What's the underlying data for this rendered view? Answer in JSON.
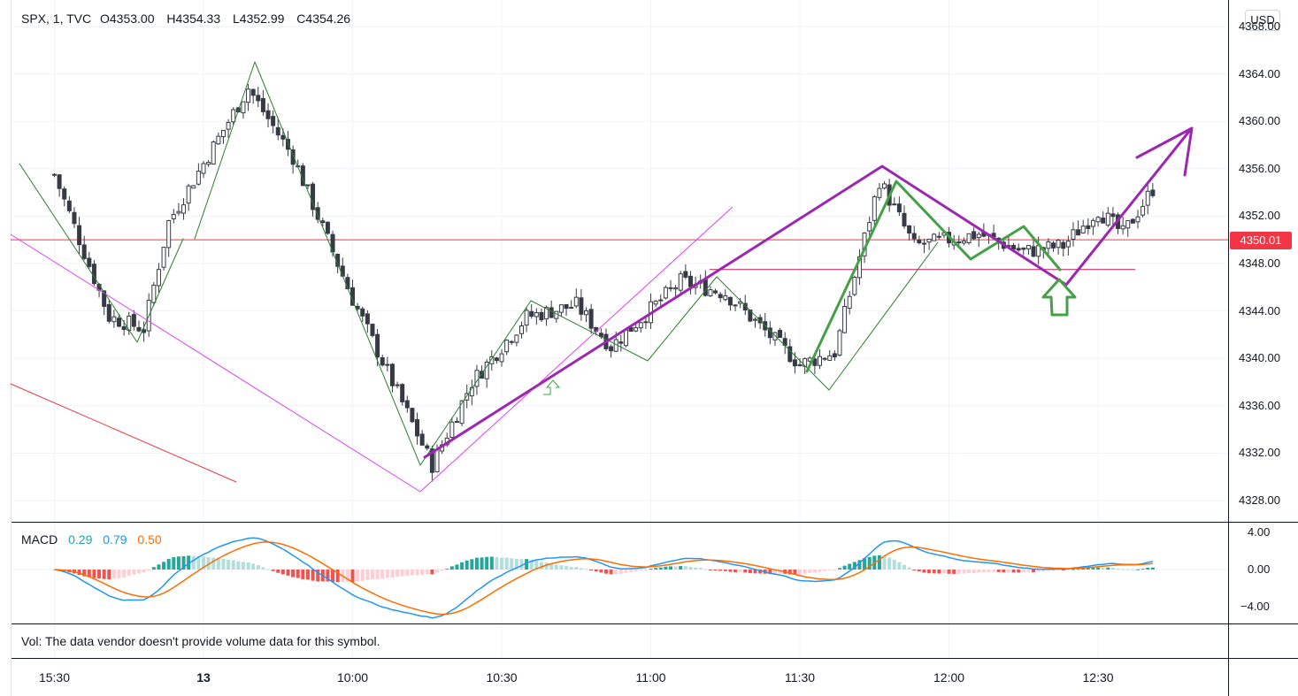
{
  "header": {
    "symbol": "SPX, 1, TVC",
    "open": "O4353.00",
    "high": "H4354.33",
    "low": "L4352.99",
    "close": "C4354.26"
  },
  "currency_button": "USD",
  "last_price_label": "4350.01",
  "price_axis_labels": [
    "4368.00",
    "4364.00",
    "4360.00",
    "4356.00",
    "4352.00",
    "4348.00",
    "4344.00",
    "4340.00",
    "4336.00",
    "4332.00",
    "4328.00"
  ],
  "macd": {
    "label": "MACD",
    "hist": "0.29",
    "macd": "0.79",
    "signal": "0.50",
    "axis_labels": [
      "4.00",
      "0.00",
      "−4.00"
    ]
  },
  "volume_note": "Vol: The data vendor doesn't provide volume data for this symbol.",
  "time_axis_labels": [
    "15:30",
    "13",
    "10:00",
    "10:30",
    "11:00",
    "11:30",
    "12:00",
    "12:30"
  ],
  "colors": {
    "up": "#ffffff",
    "down": "#363a45",
    "last_price": "#f23645",
    "zigzag_thin": "#2e7d32",
    "zigzag_bold": "#43a047",
    "pattern": "#9c27b0",
    "macd_line": "#2196f3",
    "signal_line": "#ff6d00"
  },
  "chart_data": {
    "type": "candlestick",
    "symbol": "SPX",
    "interval": "1",
    "price_axis": {
      "min": 4328,
      "max": 4368,
      "tick_step": 4
    },
    "last_price": 4350.01,
    "support_level": 4347.5,
    "anchors": [
      {
        "t": "15:30",
        "price": 4355.5
      },
      {
        "t": "15:41",
        "price": 4343.5
      },
      {
        "t": "15:48",
        "price": 4342.5
      },
      {
        "t": "15:53",
        "price": 4351.5
      },
      {
        "t": "09:39",
        "price": 4362.8
      },
      {
        "t": "09:48",
        "price": 4357.0
      },
      {
        "t": "10:00",
        "price": 4345.0
      },
      {
        "t": "10:16",
        "price": 4331.0
      },
      {
        "t": "10:24",
        "price": 4338.0
      },
      {
        "t": "10:35",
        "price": 4343.5
      },
      {
        "t": "10:45",
        "price": 4344.5
      },
      {
        "t": "10:52",
        "price": 4341.0
      },
      {
        "t": "11:06",
        "price": 4346.5
      },
      {
        "t": "11:15",
        "price": 4345.5
      },
      {
        "t": "11:30",
        "price": 4339.5
      },
      {
        "t": "11:37",
        "price": 4340.5
      },
      {
        "t": "11:46",
        "price": 4355.0
      },
      {
        "t": "11:53",
        "price": 4349.5
      },
      {
        "t": "12:06",
        "price": 4350.5
      },
      {
        "t": "12:15",
        "price": 4349.0
      },
      {
        "t": "12:23",
        "price": 4349.5
      },
      {
        "t": "12:30",
        "price": 4352.5
      },
      {
        "t": "12:35",
        "price": 4350.5
      },
      {
        "t": "12:41",
        "price": 4354.3
      }
    ],
    "macd": {
      "hist": 0.29,
      "macd": 0.79,
      "signal": 0.5,
      "axis_range": [
        -6,
        6
      ]
    }
  }
}
